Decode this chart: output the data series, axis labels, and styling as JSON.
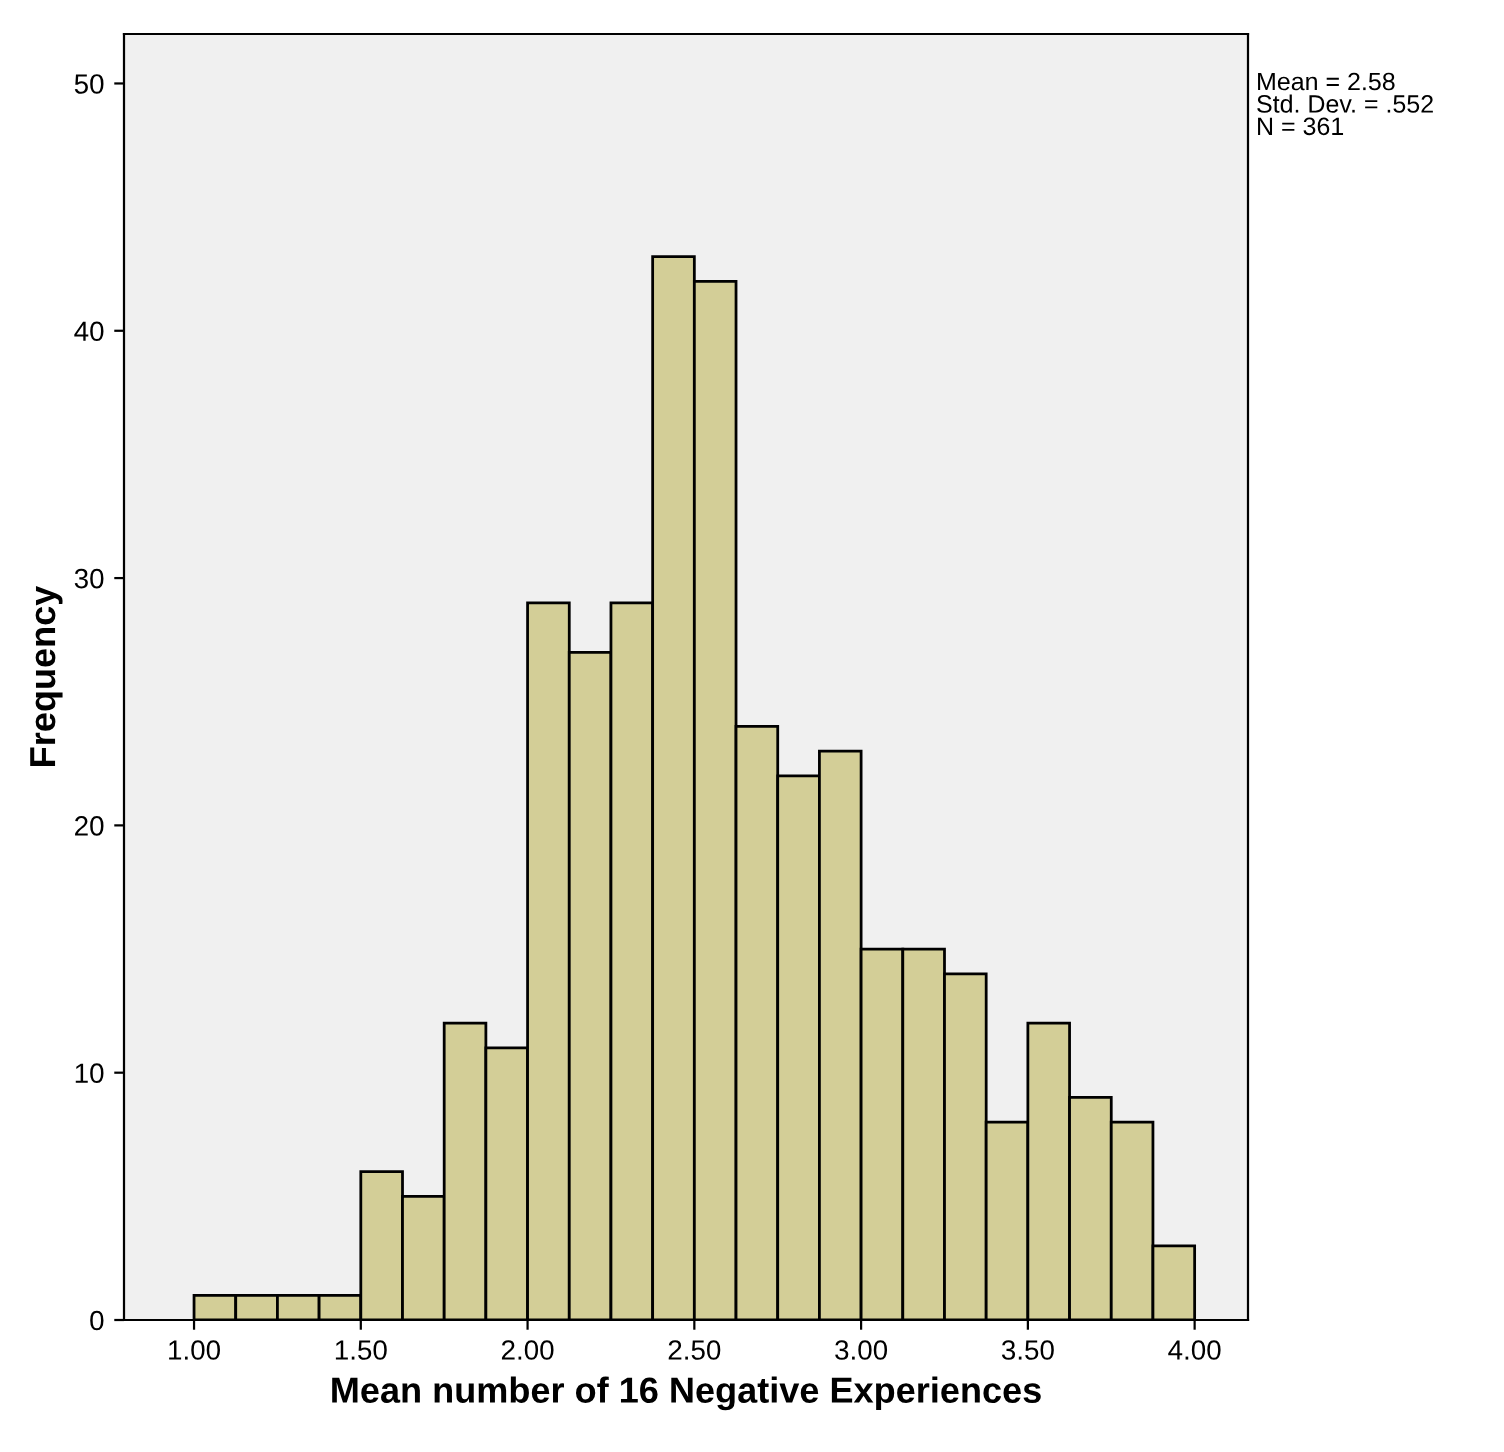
{
  "chart_data": {
    "type": "histogram",
    "xlabel": "Mean number of 16 Negative Experiences",
    "ylabel": "Frequency",
    "bins": [
      1.0,
      1.125,
      1.25,
      1.375,
      1.5,
      1.625,
      1.75,
      1.875,
      2.0,
      2.125,
      2.25,
      2.375,
      2.5,
      2.625,
      2.75,
      2.875,
      3.0,
      3.125,
      3.25,
      3.375,
      3.5,
      3.625,
      3.75,
      3.875,
      4.0
    ],
    "values": [
      1,
      1,
      1,
      1,
      6,
      5,
      12,
      11,
      29,
      27,
      29,
      43,
      42,
      24,
      22,
      23,
      15,
      15,
      14,
      8,
      12,
      9,
      8,
      3
    ],
    "color": "#d3ce97",
    "xlim": [
      0.79,
      4.16
    ],
    "ylim": [
      0,
      52
    ],
    "xticks": [
      {
        "value": 1.0,
        "label": "1.00"
      },
      {
        "value": 1.5,
        "label": "1.50"
      },
      {
        "value": 2.0,
        "label": "2.00"
      },
      {
        "value": 2.5,
        "label": "2.50"
      },
      {
        "value": 3.0,
        "label": "3.00"
      },
      {
        "value": 3.5,
        "label": "3.50"
      },
      {
        "value": 4.0,
        "label": "4.00"
      }
    ],
    "yticks": [
      0,
      10,
      20,
      30,
      40,
      50
    ],
    "annotations": [
      "Mean = 2.58\nStd. Dev. = .552\nN = 361"
    ],
    "grid": false,
    "legend": false
  }
}
